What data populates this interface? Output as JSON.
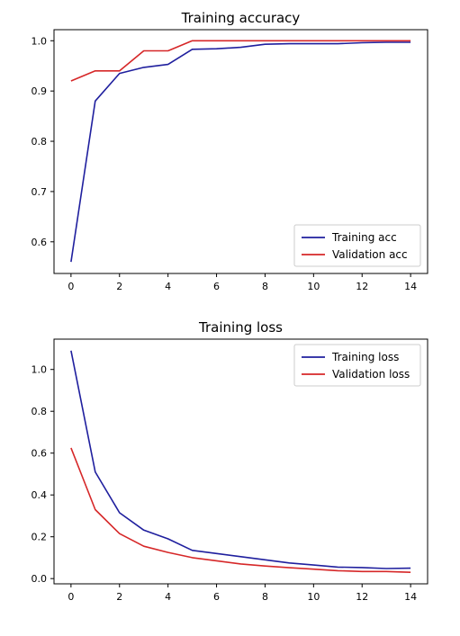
{
  "chart_data": [
    {
      "type": "line",
      "title": "Training accuracy",
      "xlabel": "",
      "ylabel": "",
      "x": [
        0,
        1,
        2,
        3,
        4,
        5,
        6,
        7,
        8,
        9,
        10,
        11,
        12,
        13,
        14
      ],
      "xlim": [
        -0.7,
        14.7
      ],
      "ylim": [
        0.537,
        1.022
      ],
      "xticks": [
        0,
        2,
        4,
        6,
        8,
        10,
        12,
        14
      ],
      "yticks": [
        0.6,
        0.7,
        0.8,
        0.9,
        1.0
      ],
      "grid": false,
      "legend_position": "lower-right",
      "series": [
        {
          "name": "Training acc",
          "color": "#1f1f9e",
          "values": [
            0.56,
            0.88,
            0.935,
            0.947,
            0.953,
            0.983,
            0.984,
            0.987,
            0.993,
            0.994,
            0.994,
            0.994,
            0.996,
            0.997,
            0.997
          ]
        },
        {
          "name": "Validation acc",
          "color": "#d62728",
          "values": [
            0.92,
            0.94,
            0.94,
            0.98,
            0.98,
            1.0,
            1.0,
            1.0,
            1.0,
            1.0,
            1.0,
            1.0,
            1.0,
            1.0,
            1.0
          ]
        }
      ]
    },
    {
      "type": "line",
      "title": "Training loss",
      "xlabel": "",
      "ylabel": "",
      "x": [
        0,
        1,
        2,
        3,
        4,
        5,
        6,
        7,
        8,
        9,
        10,
        11,
        12,
        13,
        14
      ],
      "xlim": [
        -0.7,
        14.7
      ],
      "ylim": [
        -0.025,
        1.145
      ],
      "xticks": [
        0,
        2,
        4,
        6,
        8,
        10,
        12,
        14
      ],
      "yticks": [
        0.0,
        0.2,
        0.4,
        0.6,
        0.8,
        1.0
      ],
      "grid": false,
      "legend_position": "upper-right",
      "series": [
        {
          "name": "Training loss",
          "color": "#1f1f9e",
          "values": [
            1.09,
            0.51,
            0.315,
            0.232,
            0.19,
            0.135,
            0.12,
            0.105,
            0.09,
            0.075,
            0.065,
            0.055,
            0.053,
            0.048,
            0.05
          ]
        },
        {
          "name": "Validation loss",
          "color": "#d62728",
          "values": [
            0.625,
            0.33,
            0.215,
            0.155,
            0.125,
            0.1,
            0.085,
            0.07,
            0.06,
            0.052,
            0.045,
            0.038,
            0.034,
            0.034,
            0.03
          ]
        }
      ]
    }
  ]
}
